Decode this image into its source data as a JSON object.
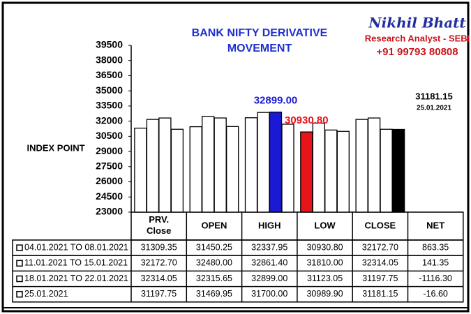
{
  "chart_data": {
    "type": "bar",
    "title": [
      "BANK NIFTY DERIVATIVE",
      "MOVEMENT"
    ],
    "brand": {
      "name": "Nikhil Bhatt",
      "role": "Research Analyst - SEBI",
      "phone": "+91 99793 80808"
    },
    "ylabel": "INDEX POINT",
    "categories": [
      "PRV. Close",
      "OPEN",
      "HIGH",
      "LOW",
      "CLOSE"
    ],
    "net_header": "NET",
    "color": "#ffffff",
    "ylim": [
      23000,
      39500
    ],
    "yticks": [
      23000,
      24500,
      26000,
      27500,
      29000,
      30500,
      32000,
      33500,
      35000,
      36500,
      38000,
      39500
    ],
    "series": [
      {
        "name": "04.01.2021 TO 08.01.2021",
        "values": [
          31309.35,
          31450.25,
          32337.95,
          30930.8,
          32172.7
        ],
        "value_labels": [
          "31309.35",
          "31450.25",
          "32337.95",
          "30930.80",
          "32172.70"
        ],
        "net": {
          "value": 863.35,
          "label": "863.35"
        }
      },
      {
        "name": "11.01.2021 TO 15.01.2021",
        "values": [
          32172.7,
          32480,
          32861.4,
          31810,
          32314.05
        ],
        "value_labels": [
          "32172.70",
          "32480.00",
          "32861.40",
          "31810.00",
          "32314.05"
        ],
        "net": {
          "value": 141.35,
          "label": "141.35"
        }
      },
      {
        "name": "18.01.2021 TO 22.01.2021",
        "values": [
          32314.05,
          32315.65,
          32899,
          31123.05,
          31197.75
        ],
        "value_labels": [
          "32314.05",
          "32315.65",
          "32899.00",
          "31123.05",
          "31197.75"
        ],
        "net": {
          "value": -1116.3,
          "label": "-1116.30"
        }
      },
      {
        "name": "25.01.2021",
        "values": [
          31197.75,
          31469.95,
          31700,
          30989.9,
          31181.15
        ],
        "value_labels": [
          "31197.75",
          "31469.95",
          "31700.00",
          "30989.90",
          "31181.15"
        ],
        "net": {
          "value": -16.6,
          "label": "-16.60"
        }
      }
    ],
    "highlights": [
      {
        "series": 2,
        "category": 2,
        "color": "#1a1ad6",
        "label": "32899.00"
      },
      {
        "series": 0,
        "category": 3,
        "color": "#e8141a",
        "label": "30930.80"
      },
      {
        "series": 3,
        "category": 4,
        "color": "#000000"
      }
    ],
    "annotations": [
      "31181.15",
      "25.01.2021"
    ]
  }
}
